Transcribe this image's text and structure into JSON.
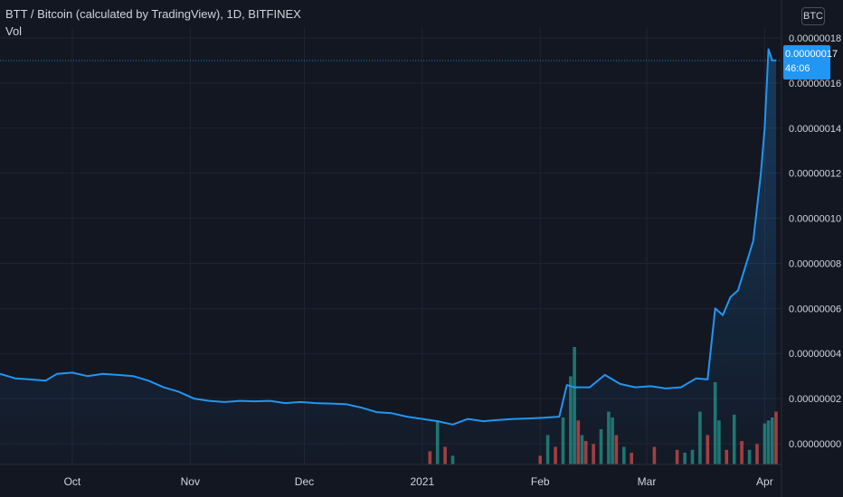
{
  "legend": {
    "symbol": "BTT / Bitcoin (calculated by TradingView), 1D, BITFINEX",
    "volume_label": "Vol"
  },
  "currency_button": "BTC",
  "last_price": {
    "value": "0.00000017",
    "countdown": "46:06"
  },
  "colors": {
    "background": "#131722",
    "line": "#2196f3",
    "grid": "#1f2433",
    "vol_up": "#26a69a",
    "vol_down": "#ef5350",
    "axis_text": "#d1d4dc"
  },
  "chart_data": {
    "type": "line",
    "title": "BTT / Bitcoin (calculated by TradingView), 1D, BITFINEX",
    "y_unit": "BTC",
    "ylim": [
      0,
      1.85e-07
    ],
    "y_ticks": [
      "0.00000000",
      "0.00000002",
      "0.00000004",
      "0.00000006",
      "0.00000008",
      "0.00000010",
      "0.00000012",
      "0.00000014",
      "0.00000016",
      "0.00000018"
    ],
    "x_tick_labels": [
      "Oct",
      "Nov",
      "Dec",
      "2021",
      "Feb",
      "Mar",
      "Apr"
    ],
    "x_tick_dates": [
      "2020-10-01",
      "2020-11-01",
      "2020-12-01",
      "2021-01-01",
      "2021-02-01",
      "2021-03-01",
      "2021-04-01"
    ],
    "x_range": [
      "2020-09-12",
      "2021-04-04"
    ],
    "grid": true,
    "series": [
      {
        "x": [
          "2020-09-12",
          "2020-09-16",
          "2020-09-20",
          "2020-09-24",
          "2020-09-27",
          "2020-10-01",
          "2020-10-05",
          "2020-10-09",
          "2020-10-13",
          "2020-10-17",
          "2020-10-21",
          "2020-10-25",
          "2020-10-29",
          "2020-11-02",
          "2020-11-06",
          "2020-11-10",
          "2020-11-14",
          "2020-11-18",
          "2020-11-22",
          "2020-11-26",
          "2020-11-30",
          "2020-12-04",
          "2020-12-08",
          "2020-12-12",
          "2020-12-16",
          "2020-12-20",
          "2020-12-24",
          "2020-12-28",
          "2021-01-01",
          "2021-01-05",
          "2021-01-09",
          "2021-01-13",
          "2021-01-17",
          "2021-01-21",
          "2021-01-25",
          "2021-01-29",
          "2021-02-02",
          "2021-02-06",
          "2021-02-08",
          "2021-02-10",
          "2021-02-14",
          "2021-02-18",
          "2021-02-22",
          "2021-02-26",
          "2021-03-02",
          "2021-03-06",
          "2021-03-10",
          "2021-03-14",
          "2021-03-17",
          "2021-03-19",
          "2021-03-21",
          "2021-03-23",
          "2021-03-25",
          "2021-03-27",
          "2021-03-29",
          "2021-03-31",
          "2021-04-01",
          "2021-04-02",
          "2021-04-03",
          "2021-04-04"
        ],
        "y": [
          3.1e-08,
          2.9e-08,
          2.85e-08,
          2.8e-08,
          3.1e-08,
          3.15e-08,
          3e-08,
          3.1e-08,
          3.05e-08,
          3e-08,
          2.8e-08,
          2.5e-08,
          2.3e-08,
          2e-08,
          1.9e-08,
          1.85e-08,
          1.9e-08,
          1.88e-08,
          1.9e-08,
          1.8e-08,
          1.85e-08,
          1.8e-08,
          1.78e-08,
          1.75e-08,
          1.6e-08,
          1.4e-08,
          1.35e-08,
          1.2e-08,
          1.1e-08,
          1e-08,
          8.5e-09,
          1.1e-08,
          1e-08,
          1.05e-08,
          1.1e-08,
          1.12e-08,
          1.15e-08,
          1.2e-08,
          2.6e-08,
          2.5e-08,
          2.5e-08,
          3.05e-08,
          2.65e-08,
          2.5e-08,
          2.55e-08,
          2.45e-08,
          2.5e-08,
          2.9e-08,
          2.85e-08,
          6e-08,
          5.7e-08,
          6.5e-08,
          6.8e-08,
          7.9e-08,
          9e-08,
          1.2e-07,
          1.4e-07,
          1.75e-07,
          1.7e-07,
          1.7e-07
        ]
      }
    ],
    "volume": {
      "x": [
        "2021-01-03",
        "2021-01-05",
        "2021-01-07",
        "2021-01-09",
        "2021-02-01",
        "2021-02-03",
        "2021-02-05",
        "2021-02-07",
        "2021-02-09",
        "2021-02-10",
        "2021-02-11",
        "2021-02-12",
        "2021-02-13",
        "2021-02-15",
        "2021-02-17",
        "2021-02-19",
        "2021-02-20",
        "2021-02-21",
        "2021-02-23",
        "2021-02-25",
        "2021-03-03",
        "2021-03-09",
        "2021-03-11",
        "2021-03-13",
        "2021-03-15",
        "2021-03-17",
        "2021-03-19",
        "2021-03-20",
        "2021-03-22",
        "2021-03-24",
        "2021-03-26",
        "2021-03-28",
        "2021-03-30",
        "2021-04-01",
        "2021-04-02",
        "2021-04-03",
        "2021-04-04"
      ],
      "values": [
        4.5e-09,
        1.5e-08,
        6e-09,
        3e-09,
        3e-09,
        1e-08,
        6e-09,
        1.6e-08,
        3e-08,
        4e-08,
        1.5e-08,
        1e-08,
        8e-09,
        7e-09,
        1.2e-08,
        1.8e-08,
        1.6e-08,
        1e-08,
        6e-09,
        4e-09,
        6e-09,
        5e-09,
        4e-09,
        5e-09,
        1.8e-08,
        1e-08,
        2.8e-08,
        1.5e-08,
        5e-09,
        1.7e-08,
        8e-09,
        5e-09,
        7e-09,
        1.4e-08,
        1.5e-08,
        1.6e-08,
        1.8e-08
      ],
      "direction": [
        "down",
        "up",
        "down",
        "up",
        "down",
        "up",
        "down",
        "up",
        "up",
        "up",
        "down",
        "up",
        "down",
        "down",
        "up",
        "up",
        "up",
        "down",
        "up",
        "down",
        "down",
        "down",
        "up",
        "up",
        "up",
        "down",
        "up",
        "up",
        "down",
        "up",
        "down",
        "up",
        "down",
        "up",
        "up",
        "up",
        "down"
      ]
    }
  }
}
